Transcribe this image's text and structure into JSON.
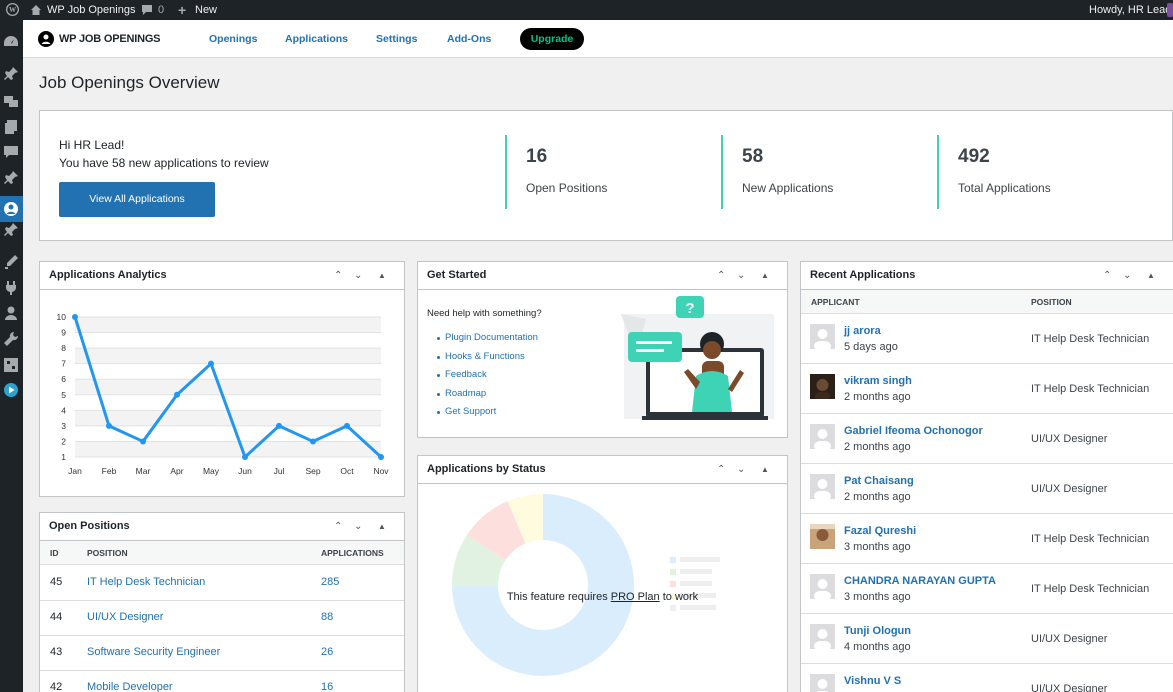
{
  "admin_bar": {
    "site_name": "WP Job Openings",
    "comments_count": "0",
    "new_label": "New",
    "howdy": "Howdy, HR Lead"
  },
  "sidebar": {
    "icons": [
      "dashboard-icon",
      "pin-icon",
      "media-icon",
      "pages-icon",
      "comments-icon",
      "pin-icon",
      "job-openings-icon",
      "pin-icon",
      "appearance-icon",
      "plugins-icon",
      "users-icon",
      "tools-icon",
      "settings-icon",
      "play-icon"
    ]
  },
  "plugin_nav": {
    "logo_text": "WP JOB OPENINGS",
    "links": [
      "Openings",
      "Applications",
      "Settings",
      "Add-Ons"
    ],
    "upgrade": "Upgrade"
  },
  "page_title": "Job Openings Overview",
  "overview": {
    "greeting": "Hi HR Lead!",
    "subtext": "You have 58 new applications to review",
    "button": "View All Applications",
    "stats": [
      {
        "value": "16",
        "label": "Open Positions"
      },
      {
        "value": "58",
        "label": "New Applications"
      },
      {
        "value": "492",
        "label": "Total Applications"
      }
    ]
  },
  "analytics": {
    "title": "Applications Analytics"
  },
  "chart_data": {
    "type": "line",
    "x": [
      "Jan",
      "Feb",
      "Mar",
      "Apr",
      "May",
      "Jun",
      "Jul",
      "Sep",
      "Oct",
      "Nov"
    ],
    "values": [
      10,
      3,
      2,
      5,
      7,
      1,
      3,
      2,
      3,
      1
    ],
    "yticks": [
      1,
      2,
      3,
      4,
      5,
      6,
      7,
      8,
      9,
      10
    ],
    "ylim": [
      1,
      10
    ],
    "grid": true,
    "color": "#2196f3"
  },
  "open_positions": {
    "title": "Open Positions",
    "columns": [
      "ID",
      "POSITION",
      "APPLICATIONS"
    ],
    "rows": [
      {
        "id": "45",
        "position": "IT Help Desk Technician",
        "applications": "285"
      },
      {
        "id": "44",
        "position": "UI/UX Designer",
        "applications": "88"
      },
      {
        "id": "43",
        "position": "Software Security Engineer",
        "applications": "26"
      },
      {
        "id": "42",
        "position": "Mobile Developer",
        "applications": "16"
      }
    ]
  },
  "get_started": {
    "title": "Get Started",
    "help_text": "Need help with something?",
    "links": [
      "Plugin Documentation",
      "Hooks & Functions",
      "Feedback",
      "Roadmap",
      "Get Support"
    ]
  },
  "apps_by_status": {
    "title": "Applications by Status",
    "message_before": "This feature requires ",
    "message_link": "PRO Plan",
    "message_after": " to work"
  },
  "recent_apps": {
    "title": "Recent Applications",
    "columns": [
      "APPLICANT",
      "POSITION"
    ],
    "rows": [
      {
        "name": "jj arora",
        "time": "5 days ago",
        "position": "IT Help Desk Technician"
      },
      {
        "name": "vikram singh",
        "time": "2 months ago",
        "position": "IT Help Desk Technician"
      },
      {
        "name": "Gabriel Ifeoma Ochonogor",
        "time": "2 months ago",
        "position": "UI/UX Designer"
      },
      {
        "name": "Pat Chaisang",
        "time": "2 months ago",
        "position": "UI/UX Designer"
      },
      {
        "name": "Fazal Qureshi",
        "time": "3 months ago",
        "position": "IT Help Desk Technician"
      },
      {
        "name": "CHANDRA NARAYAN GUPTA",
        "time": "3 months ago",
        "position": "IT Help Desk Technician"
      },
      {
        "name": "Tunji Ologun",
        "time": "4 months ago",
        "position": "UI/UX Designer"
      },
      {
        "name": "Vishnu V S",
        "time": "",
        "position": "UI/UX Designer"
      }
    ]
  }
}
